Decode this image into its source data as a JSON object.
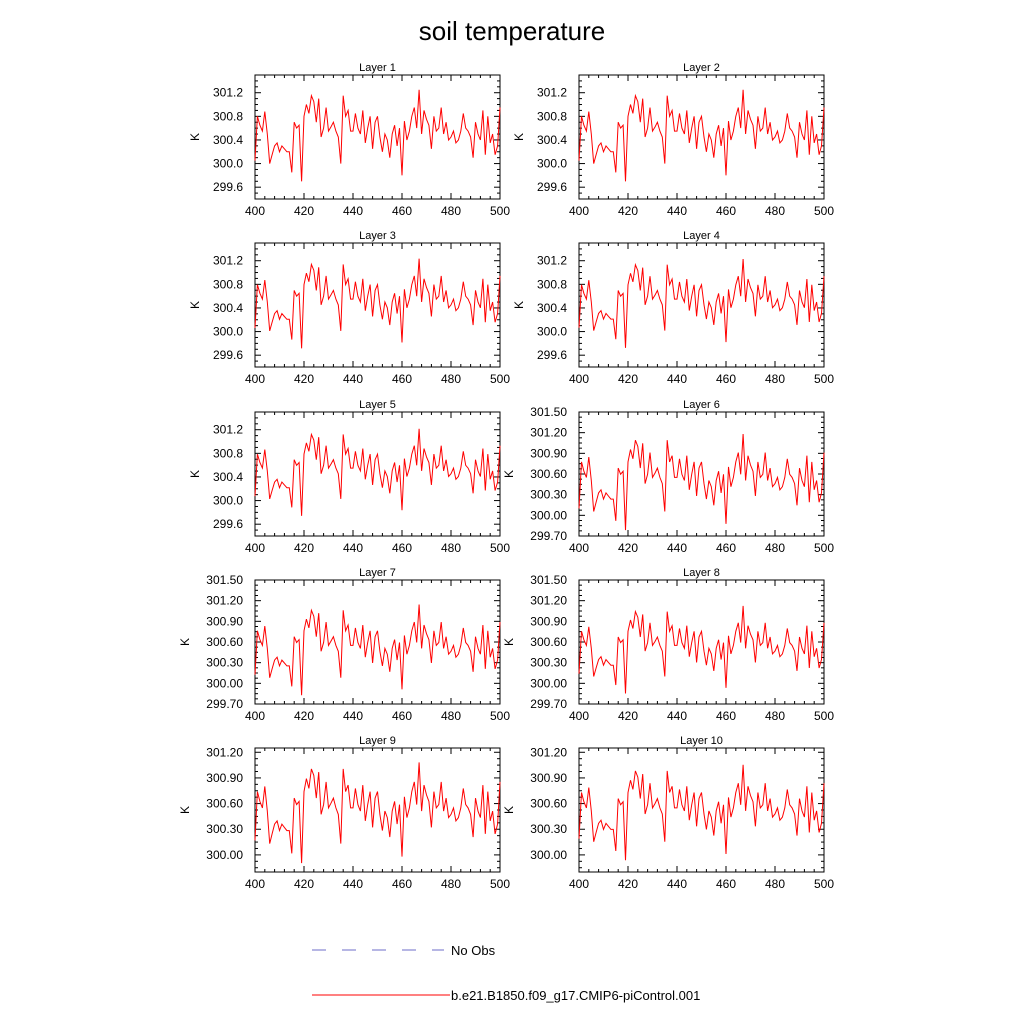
{
  "chart_data": {
    "type": "line",
    "title": "soil temperature",
    "xlabel": "",
    "xlim": [
      400,
      500
    ],
    "xticks": [
      400,
      420,
      440,
      460,
      480,
      500
    ],
    "legend": {
      "placement": "bottom",
      "entries": [
        {
          "label": "No Obs",
          "color": "#6e6ec8",
          "style": "dashed"
        },
        {
          "label": "b.e21.B1850.f09_g17.CMIP6-piControl.001",
          "color": "#ff0000",
          "style": "solid"
        }
      ]
    },
    "base_series": [
      300.05,
      300.8,
      300.65,
      300.55,
      300.88,
      300.5,
      300.0,
      300.15,
      300.3,
      300.35,
      300.2,
      300.3,
      300.25,
      300.2,
      300.2,
      299.85,
      300.7,
      300.6,
      300.65,
      299.7,
      300.8,
      301.0,
      300.85,
      301.15,
      301.05,
      300.7,
      301.1,
      300.45,
      300.6,
      300.95,
      300.55,
      300.62,
      300.7,
      300.55,
      300.45,
      300.0,
      301.15,
      300.8,
      300.9,
      300.55,
      300.55,
      300.85,
      300.6,
      300.5,
      300.9,
      300.35,
      300.6,
      300.8,
      300.25,
      300.7,
      300.8,
      300.45,
      300.2,
      300.5,
      300.4,
      300.1,
      300.5,
      300.65,
      300.3,
      300.6,
      299.8,
      300.72,
      300.4,
      300.55,
      300.8,
      300.95,
      300.6,
      301.25,
      300.5,
      300.9,
      300.75,
      300.65,
      300.25,
      300.8,
      300.55,
      300.6,
      300.95,
      300.5,
      300.7,
      300.4,
      300.45,
      300.55,
      300.35,
      300.4,
      300.55,
      300.85,
      300.6,
      300.55,
      300.45,
      300.1,
      300.7,
      300.5,
      300.4,
      300.9,
      300.15,
      300.8,
      300.35,
      300.5,
      300.15,
      300.3,
      300.95
    ],
    "panels": [
      {
        "title": "Layer 1",
        "ylabel": "K",
        "ylim": [
          299.4,
          301.5
        ],
        "yticks": [
          "299.6",
          "300.0",
          "300.4",
          "300.8",
          "301.2"
        ],
        "scale": 1.0
      },
      {
        "title": "Layer 2",
        "ylabel": "K",
        "ylim": [
          299.4,
          301.5
        ],
        "yticks": [
          "299.6",
          "300.0",
          "300.4",
          "300.8",
          "301.2"
        ],
        "scale": 1.0
      },
      {
        "title": "Layer 3",
        "ylabel": "K",
        "ylim": [
          299.4,
          301.5
        ],
        "yticks": [
          "299.6",
          "300.0",
          "300.4",
          "300.8",
          "301.2"
        ],
        "scale": 0.98
      },
      {
        "title": "Layer 4",
        "ylabel": "K",
        "ylim": [
          299.4,
          301.5
        ],
        "yticks": [
          "299.6",
          "300.0",
          "300.4",
          "300.8",
          "301.2"
        ],
        "scale": 0.97
      },
      {
        "title": "Layer 5",
        "ylabel": "K",
        "ylim": [
          299.4,
          301.5
        ],
        "yticks": [
          "299.6",
          "300.0",
          "300.4",
          "300.8",
          "301.2"
        ],
        "scale": 0.95
      },
      {
        "title": "Layer 6",
        "ylabel": "K",
        "ylim": [
          299.7,
          301.5
        ],
        "yticks": [
          "299.70",
          "300.00",
          "300.30",
          "300.60",
          "300.90",
          "301.20",
          "301.50"
        ],
        "scale": 0.9
      },
      {
        "title": "Layer 7",
        "ylabel": "K",
        "ylim": [
          299.7,
          301.5
        ],
        "yticks": [
          "299.70",
          "300.00",
          "300.30",
          "300.60",
          "300.90",
          "301.20",
          "301.50"
        ],
        "scale": 0.85
      },
      {
        "title": "Layer 8",
        "ylabel": "K",
        "ylim": [
          299.7,
          301.5
        ],
        "yticks": [
          "299.70",
          "300.00",
          "300.30",
          "300.60",
          "300.90",
          "301.20",
          "301.50"
        ],
        "scale": 0.82
      },
      {
        "title": "Layer 9",
        "ylabel": "K",
        "ylim": [
          299.8,
          301.25
        ],
        "yticks": [
          "300.00",
          "300.30",
          "300.60",
          "300.90",
          "301.20"
        ],
        "scale": 0.76
      },
      {
        "title": "Layer 10",
        "ylabel": "K",
        "ylim": [
          299.8,
          301.25
        ],
        "yticks": [
          "300.00",
          "300.30",
          "300.60",
          "300.90",
          "301.20"
        ],
        "scale": 0.72
      }
    ]
  }
}
